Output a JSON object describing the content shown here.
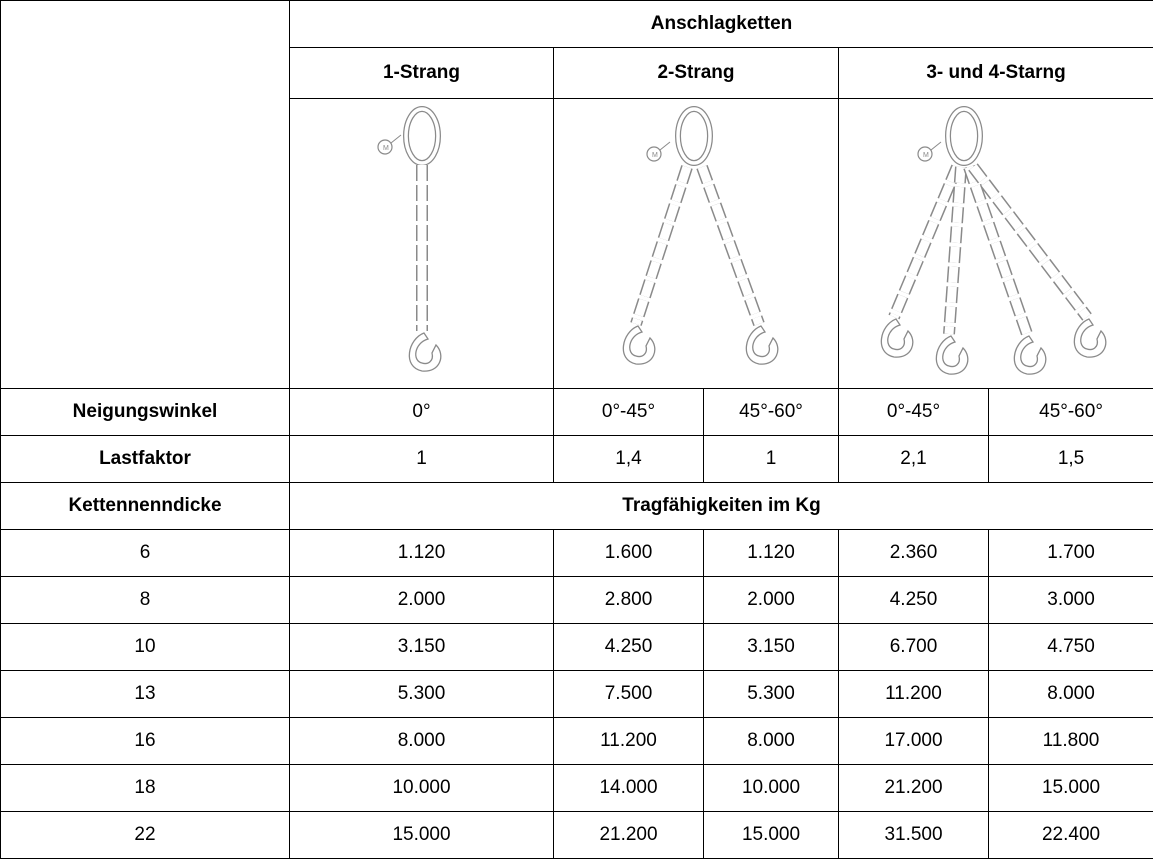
{
  "header": {
    "group": "Anschlagketten",
    "types": [
      "1-Strang",
      "2-Strang",
      "3- und 4-Starng"
    ]
  },
  "angle": {
    "label": "Neigungswinkel",
    "values": [
      "0°",
      "0°-45°",
      "45°-60°",
      "0°-45°",
      "45°-60°"
    ]
  },
  "factor": {
    "label": "Lastfaktor",
    "values": [
      "1",
      "1,4",
      "1",
      "2,1",
      "1,5"
    ]
  },
  "capacity": {
    "label": "Kettennenndicke",
    "title": "Tragfähigkeiten im Kg"
  },
  "table": {
    "rows": [
      [
        "6",
        "1.120",
        "1.600",
        "1.120",
        "2.360",
        "1.700"
      ],
      [
        "8",
        "2.000",
        "2.800",
        "2.000",
        "4.250",
        "3.000"
      ],
      [
        "10",
        "3.150",
        "4.250",
        "3.150",
        "6.700",
        "4.750"
      ],
      [
        "13",
        "5.300",
        "7.500",
        "5.300",
        "11.200",
        "8.000"
      ],
      [
        "16",
        "8.000",
        "11.200",
        "8.000",
        "17.000",
        "11.800"
      ],
      [
        "18",
        "10.000",
        "14.000",
        "10.000",
        "21.200",
        "15.000"
      ],
      [
        "22",
        "15.000",
        "21.200",
        "15.000",
        "31.500",
        "22.400"
      ]
    ]
  }
}
